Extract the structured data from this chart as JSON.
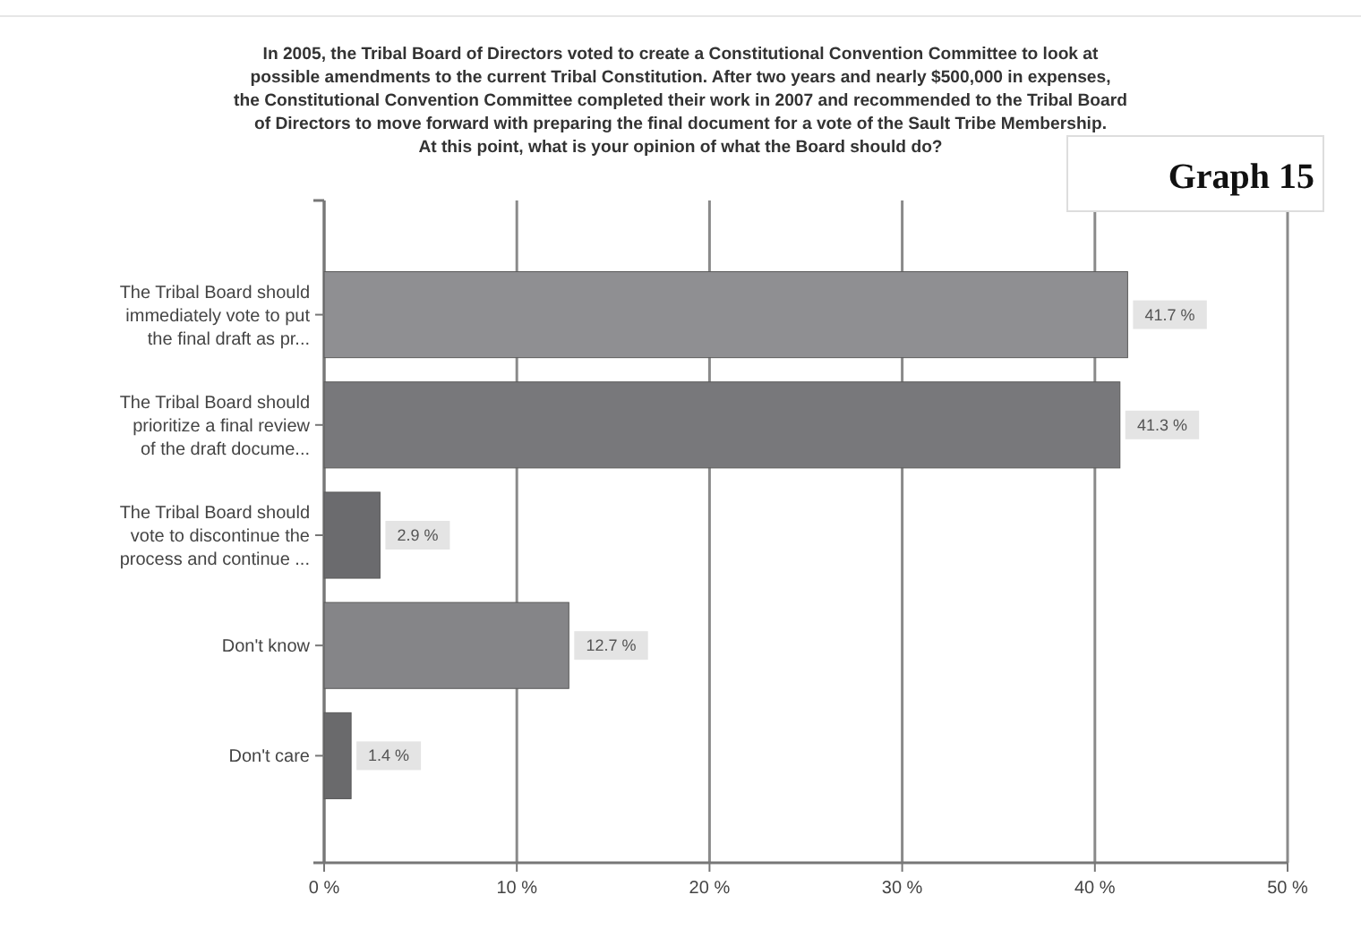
{
  "chart_data": {
    "type": "bar",
    "orientation": "horizontal",
    "title": "In 2005, the Tribal Board of Directors voted to create a Constitutional Convention Committee to look at possible amendments to the current Tribal Constitution.  After two years and nearly $500,000 in expenses, the Constitutional Convention Committee completed their work in 2007 and recommended to the Tribal Board of Directors to move forward with preparing the final document for a vote of the Sault Tribe Membership.  At this point, what is your opinion of what the Board should do?",
    "annotations": [
      "Graph 15"
    ],
    "categories": [
      "The Tribal Board should immediately vote to put the final draft as pr...",
      "The Tribal Board should prioritize a final review of the draft docume...",
      "The Tribal Board should vote to discontinue the process and continue ...",
      "Don't know",
      "Don't care"
    ],
    "values": [
      41.7,
      41.3,
      2.9,
      12.7,
      1.4
    ],
    "value_labels": [
      "41.7 %",
      "41.3 %",
      "2.9 %",
      "12.7 %",
      "1.4 %"
    ],
    "colors": [
      "#8f8f92",
      "#78787b",
      "#6b6b6e",
      "#858588",
      "#6a6a6c"
    ],
    "xlim": [
      0,
      50
    ],
    "xticks": [
      {
        "value": 0,
        "label": "0 %"
      },
      {
        "value": 10,
        "label": "10 %"
      },
      {
        "value": 20,
        "label": "20 %"
      },
      {
        "value": 30,
        "label": "30 %"
      },
      {
        "value": 40,
        "label": "40 %"
      },
      {
        "value": 50,
        "label": "50 %"
      }
    ],
    "grid": "x"
  }
}
